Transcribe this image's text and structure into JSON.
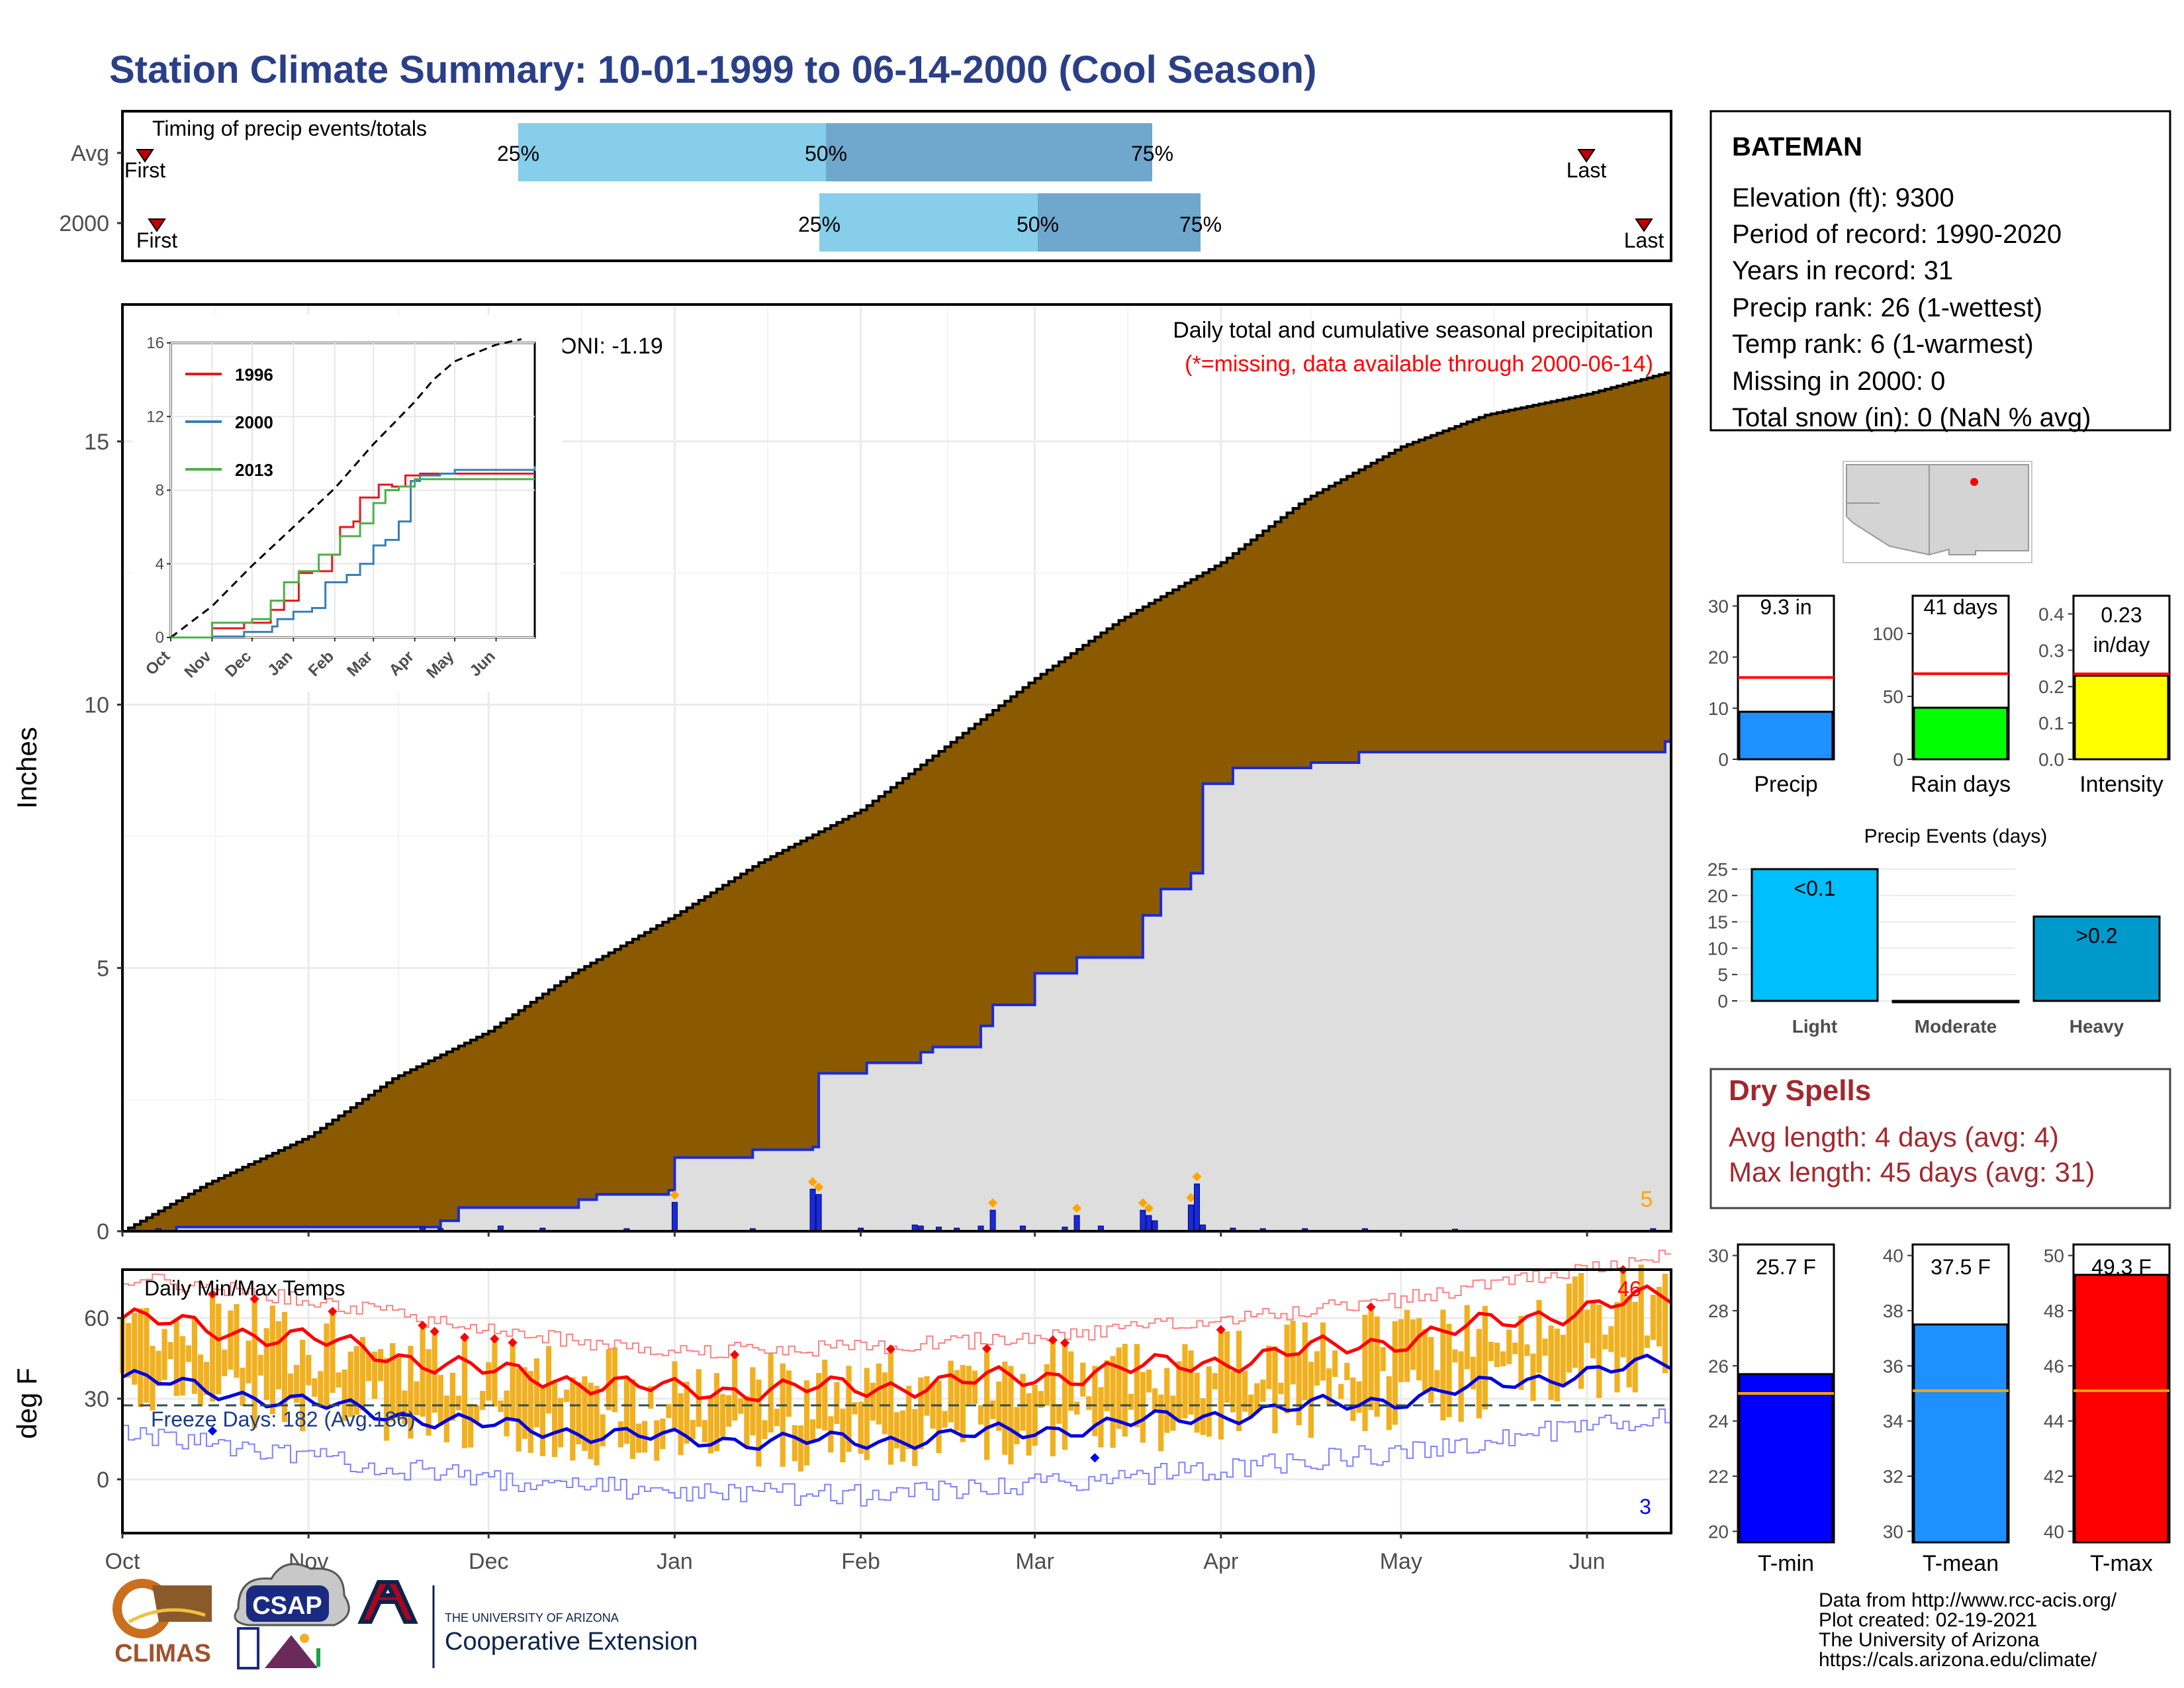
{
  "title": "Station Climate Summary: 10-01-1999 to 06-14-2000 (Cool Season)",
  "colors": {
    "title": "#2a3f87",
    "precip_fill": "#8b5a00",
    "obs_line": "#1a2ad6",
    "grey_fill": "#dedede",
    "bar_light": "#87ceeb",
    "bar_dark": "#6fa8cc",
    "temp_bar": "#f0b020",
    "red": "#ff0000",
    "blue": "#0000ff",
    "dry_spell": "#a3282e",
    "orange_dot": "#ffa500"
  },
  "timing": {
    "label": "Timing of precip events/totals",
    "rows": [
      {
        "name": "Avg",
        "first_label": "First",
        "last_label": "Last",
        "p25": "25%",
        "p50": "50%",
        "p75": "75%"
      },
      {
        "name": "2000",
        "first_label": "First",
        "last_label": "Last",
        "p25": "25%",
        "p50": "50%",
        "p75": "75%"
      }
    ]
  },
  "main": {
    "ylabel": "Inches",
    "header": "Daily total and cumulative seasonal precipitation",
    "subheader": "(*=missing, data available through 2000-06-14)",
    "oni": "ONI: -1.19",
    "max_daily_label": "5",
    "yticks": [
      "0",
      "5",
      "10",
      "15"
    ],
    "xticks": [
      "Oct",
      "Nov",
      "Dec",
      "Jan",
      "Feb",
      "Mar",
      "Apr",
      "May",
      "Jun"
    ]
  },
  "inset": {
    "yticks": [
      "0",
      "4",
      "8",
      "12",
      "16"
    ],
    "xticks": [
      "Oct",
      "Nov",
      "Dec",
      "Jan",
      "Feb",
      "Mar",
      "Apr",
      "May",
      "Jun"
    ],
    "legend": [
      {
        "name": "1996",
        "color": "#e41a1c"
      },
      {
        "name": "2000",
        "color": "#377eb8"
      },
      {
        "name": "2013",
        "color": "#4daf4a"
      }
    ]
  },
  "temps": {
    "ylabel": "deg F",
    "header": "Daily Min/Max Temps",
    "freeze": "Freeze Days: 182 (Avg:186)",
    "max_count": "46",
    "min_count": "3",
    "yticks": [
      "0",
      "30",
      "60"
    ]
  },
  "station": {
    "name": "BATEMAN",
    "lines": [
      "Elevation (ft): 9300",
      "Period of record: 1990-2020",
      "Years in record: 31",
      "Precip rank: 26 (1-wettest)",
      "Temp rank: 6 (1-warmest)",
      "Missing in 2000: 0",
      "Total snow (in): 0 (NaN % avg)"
    ]
  },
  "mini_bars": [
    {
      "label": "Precip",
      "value_label": "9.3 in",
      "value": 9.3,
      "avg": 16.0,
      "ymax": 32,
      "yticks": [
        "0",
        "10",
        "20",
        "30"
      ],
      "tick_values": [
        0,
        10,
        20,
        30
      ],
      "color": "#1e90ff"
    },
    {
      "label": "Rain days",
      "value_label": "41 days",
      "value": 41,
      "avg": 68,
      "ymax": 130,
      "yticks": [
        "0",
        "50",
        "100"
      ],
      "tick_values": [
        0,
        50,
        100
      ],
      "color": "#00ff00"
    },
    {
      "label": "Intensity",
      "value_label": "0.23",
      "value_label2": "in/day",
      "value": 0.23,
      "avg": 0.235,
      "ymax": 0.45,
      "yticks": [
        "0.0",
        "0.1",
        "0.2",
        "0.3",
        "0.4"
      ],
      "tick_values": [
        0,
        0.1,
        0.2,
        0.3,
        0.4
      ],
      "color": "#ffff00"
    }
  ],
  "events": {
    "title": "Precip Events (days)",
    "yticks": [
      "0",
      "5",
      "10",
      "15",
      "20",
      "25"
    ],
    "categories": [
      "Light",
      "Moderate",
      "Heavy"
    ],
    "values": [
      25,
      0,
      16
    ],
    "bar_labels": [
      "<0.1",
      "",
      ">0.2"
    ],
    "colors": [
      "#00bfff",
      "#1e90ff",
      "#0099cc"
    ]
  },
  "dry": {
    "title": "Dry Spells",
    "avg": "Avg length: 4 days (avg: 4)",
    "max": "Max length: 45 days (avg: 31)"
  },
  "temp_bars": [
    {
      "label": "T-min",
      "value_label": "25.7 F",
      "value": 25.7,
      "avg": 25.0,
      "ymin": 19.6,
      "ymax": 30.4,
      "yticks": [
        "20",
        "22",
        "24",
        "26",
        "28",
        "30"
      ],
      "tick_values": [
        20,
        22,
        24,
        26,
        28,
        30
      ],
      "color": "#0000ff"
    },
    {
      "label": "T-mean",
      "value_label": "37.5 F",
      "value": 37.5,
      "avg": 35.1,
      "ymin": 29.6,
      "ymax": 40.4,
      "yticks": [
        "30",
        "32",
        "34",
        "36",
        "38",
        "40"
      ],
      "tick_values": [
        30,
        32,
        34,
        36,
        38,
        40
      ],
      "color": "#1e90ff"
    },
    {
      "label": "T-max",
      "value_label": "49.3 F",
      "value": 49.3,
      "avg": 45.1,
      "ymin": 39.6,
      "ymax": 50.4,
      "yticks": [
        "40",
        "42",
        "44",
        "46",
        "48",
        "50"
      ],
      "tick_values": [
        40,
        42,
        44,
        46,
        48,
        50
      ],
      "color": "#ff0000"
    }
  ],
  "footer": {
    "lines": [
      "Data from http://www.rcc-acis.org/",
      "Plot created: 02-19-2021",
      "The University of Arizona",
      "https://cals.arizona.edu/climate/"
    ],
    "logo_climas": "CLIMAS",
    "logo_csap": "CSAP",
    "ua_top": "THE UNIVERSITY OF ARIZONA",
    "ua_bottom": "Cooperative Extension"
  },
  "chart_data": [
    {
      "type": "area",
      "title": "Daily total and cumulative seasonal precipitation",
      "ylabel": "Inches",
      "ylim": [
        0,
        17.6
      ],
      "x_range": [
        "1999-10-01",
        "2000-06-14"
      ],
      "series": [
        {
          "name": "",
          "x": [
            "1999-10-01",
            "1999-10-15",
            "1999-11-01",
            "1999-11-15",
            "1999-12-01",
            "1999-12-15",
            "2000-01-01",
            "2000-01-15",
            "2000-02-01",
            "2000-02-15",
            "2000-03-01",
            "2000-03-15",
            "2000-04-01",
            "2000-04-15",
            "2000-05-01",
            "2000-05-15",
            "2000-06-01",
            "2000-06-14"
          ],
          "values": [
            0.0,
            0.9,
            1.8,
            2.9,
            3.8,
            4.9,
            6.0,
            7.0,
            8.0,
            9.2,
            10.5,
            11.6,
            12.7,
            13.9,
            14.9,
            15.5,
            15.9,
            16.3
          ]
        },
        {
          "name": "2000",
          "x": [
            "1999-10-01",
            "1999-10-10",
            "1999-11-23",
            "1999-11-26",
            "1999-12-16",
            "1999-12-19",
            "1999-12-31",
            "2000-01-01",
            "2000-01-14",
            "2000-01-24",
            "2000-01-25",
            "2000-02-02",
            "2000-02-11",
            "2000-02-13",
            "2000-02-21",
            "2000-02-23",
            "2000-03-01",
            "2000-03-08",
            "2000-03-19",
            "2000-03-22",
            "2000-03-27",
            "2000-03-29",
            "2000-04-03",
            "2000-04-16",
            "2000-04-24",
            "2000-06-14"
          ],
          "values": [
            0.0,
            0.08,
            0.2,
            0.45,
            0.6,
            0.7,
            0.78,
            1.4,
            1.55,
            1.6,
            3.0,
            3.2,
            3.4,
            3.5,
            3.9,
            4.3,
            4.9,
            5.2,
            6.0,
            6.5,
            6.8,
            8.5,
            8.8,
            8.9,
            9.1,
            9.3
          ]
        }
      ],
      "daily_bars": {
        "x": [
          "1999-10-07",
          "1999-11-20",
          "1999-11-23",
          "1999-12-03",
          "1999-12-10",
          "1999-12-24",
          "2000-01-01",
          "2000-01-14",
          "2000-01-24",
          "2000-01-25",
          "2000-02-01",
          "2000-02-10",
          "2000-02-11",
          "2000-02-14",
          "2000-02-17",
          "2000-02-21",
          "2000-02-23",
          "2000-02-28",
          "2000-03-06",
          "2000-03-08",
          "2000-03-12",
          "2000-03-19",
          "2000-03-20",
          "2000-03-21",
          "2000-03-27",
          "2000-03-28",
          "2000-03-29",
          "2000-04-03",
          "2000-04-08",
          "2000-04-15",
          "2000-04-25",
          "2000-05-10",
          "2000-06-12"
        ],
        "values": [
          0.05,
          0.08,
          0.05,
          0.1,
          0.06,
          0.05,
          0.55,
          0.05,
          0.8,
          0.7,
          0.06,
          0.12,
          0.1,
          0.08,
          0.06,
          0.1,
          0.4,
          0.1,
          0.08,
          0.3,
          0.1,
          0.4,
          0.3,
          0.2,
          0.5,
          0.9,
          0.12,
          0.06,
          0.05,
          0.05,
          0.05,
          0.04,
          0.05
        ]
      }
    },
    {
      "type": "line",
      "title": "",
      "ylim": [
        0,
        16
      ],
      "x_range": [
        "1999-10-01",
        "2000-06-30"
      ],
      "series": [
        {
          "name": "",
          "x": [
            "1999-10-01",
            "1999-11-01",
            "1999-12-01",
            "2000-01-01",
            "2000-02-01",
            "2000-03-01",
            "2000-04-01",
            "2000-04-15",
            "2000-05-01",
            "2000-06-01",
            "2000-06-20"
          ],
          "values": [
            0.0,
            1.7,
            3.9,
            6.0,
            8.1,
            10.5,
            12.8,
            14.0,
            15.0,
            15.9,
            16.2
          ]
        },
        {
          "name": "1996",
          "x": [
            "1999-10-01",
            "1999-11-01",
            "1999-11-25",
            "1999-12-01",
            "1999-12-15",
            "1999-12-25",
            "2000-01-05",
            "2000-01-15",
            "2000-01-30",
            "2000-02-05",
            "2000-02-15",
            "2000-02-20",
            "2000-03-01",
            "2000-03-05",
            "2000-03-15",
            "2000-03-25",
            "2000-04-05",
            "2000-05-01",
            "2000-06-30"
          ],
          "values": [
            0.0,
            0.5,
            0.8,
            0.8,
            1.5,
            2.0,
            3.5,
            3.6,
            4.5,
            6.0,
            6.3,
            7.6,
            7.6,
            8.3,
            8.2,
            8.8,
            8.9,
            8.9,
            8.9
          ]
        },
        {
          "name": "2000",
          "x": [
            "1999-10-01",
            "1999-11-01",
            "1999-11-25",
            "1999-12-16",
            "1999-12-20",
            "2000-01-01",
            "2000-01-15",
            "2000-01-25",
            "2000-02-10",
            "2000-02-20",
            "2000-03-01",
            "2000-03-10",
            "2000-03-20",
            "2000-03-29",
            "2000-04-05",
            "2000-04-20",
            "2000-05-01",
            "2000-06-30"
          ],
          "values": [
            0.0,
            0.05,
            0.3,
            0.6,
            1.0,
            1.4,
            1.6,
            3.0,
            3.4,
            4.0,
            5.0,
            5.3,
            6.3,
            8.5,
            8.8,
            8.9,
            9.1,
            9.3
          ]
        },
        {
          "name": "2013",
          "x": [
            "1999-10-01",
            "1999-11-01",
            "1999-12-01",
            "1999-12-15",
            "1999-12-25",
            "2000-01-05",
            "2000-01-20",
            "2000-02-05",
            "2000-02-20",
            "2000-03-01",
            "2000-03-10",
            "2000-03-20",
            "2000-04-01",
            "2000-05-01",
            "2000-06-30"
          ],
          "values": [
            0.0,
            0.8,
            1.0,
            2.0,
            3.0,
            3.6,
            4.5,
            5.5,
            6.2,
            7.3,
            8.0,
            8.2,
            8.6,
            8.6,
            8.6
          ]
        }
      ]
    },
    {
      "type": "line",
      "title": "Daily Min/Max Temps",
      "ylabel": "deg F",
      "ylim": [
        -20,
        78
      ],
      "x_range": [
        "1999-10-01",
        "2000-06-14"
      ],
      "series": [
        {
          "name": "",
          "x": [
            "1999-10-01",
            "1999-11-01",
            "1999-12-01",
            "2000-01-01",
            "2000-02-01",
            "2000-03-01",
            "2000-04-01",
            "2000-05-01",
            "2000-06-01",
            "2000-06-14"
          ],
          "values": [
            60,
            52,
            40,
            33,
            34,
            38,
            44,
            52,
            64,
            68
          ]
        },
        {
          "name": "",
          "x": [
            "1999-10-01",
            "1999-11-01",
            "1999-12-01",
            "2000-01-01",
            "2000-02-01",
            "2000-03-01",
            "2000-04-01",
            "2000-05-01",
            "2000-06-01",
            "2000-06-14"
          ],
          "values": [
            38,
            28,
            20,
            15,
            14,
            18,
            24,
            30,
            40,
            43
          ]
        }
      ]
    },
    {
      "type": "bar",
      "categories": [
        "Precip",
        "Rain days",
        "Intensity"
      ],
      "series": [
        {
          "name": "",
          "values": [
            9.3,
            41,
            0.23
          ]
        }
      ]
    },
    {
      "type": "bar",
      "title": "Precip Events (days)",
      "categories": [
        "Light",
        "Moderate",
        "Heavy"
      ],
      "values": [
        25,
        0,
        16
      ],
      "ylim": [
        0,
        26
      ]
    },
    {
      "type": "bar",
      "categories": [
        "T-min",
        "T-mean",
        "T-max"
      ],
      "series": [
        {
          "name": "",
          "values": [
            25.7,
            37.5,
            49.3
          ]
        }
      ]
    }
  ]
}
